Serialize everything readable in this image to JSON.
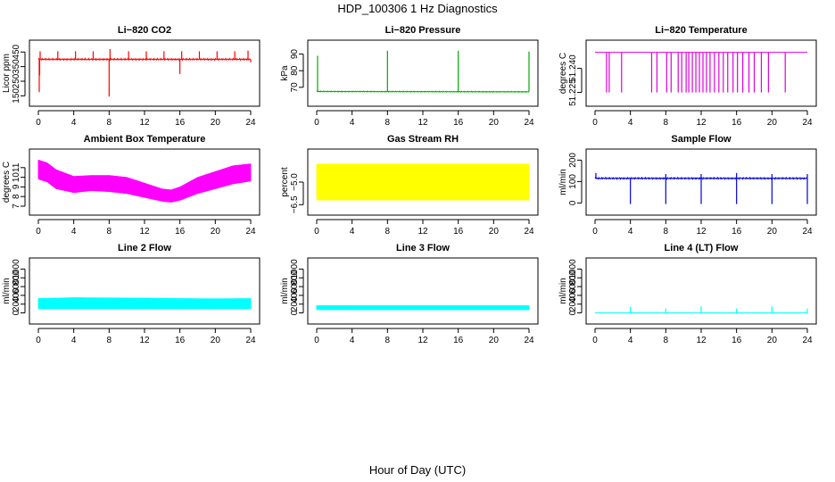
{
  "figure": {
    "title": "HDP_100306  1 Hz Diagnostics",
    "xlabel": "Hour of Day (UTC)"
  },
  "chart_data": [
    {
      "type": "line",
      "title": "Li−820 CO2",
      "ylabel": "Licor ppm",
      "color": "#ff0000",
      "xlim": [
        0,
        24
      ],
      "ylim": [
        140,
        470
      ],
      "xticks": [
        0,
        4,
        8,
        12,
        16,
        20,
        24
      ],
      "yticks": [
        150,
        250,
        350,
        450
      ],
      "baseline": 400,
      "noise": 6,
      "spikes_up": [
        [
          0.2,
          455
        ],
        [
          2.2,
          455
        ],
        [
          4.2,
          455
        ],
        [
          6.2,
          455
        ],
        [
          8.1,
          470
        ],
        [
          10.2,
          455
        ],
        [
          12.2,
          455
        ],
        [
          14.2,
          455
        ],
        [
          16.2,
          455
        ],
        [
          18.2,
          455
        ],
        [
          20.2,
          455
        ],
        [
          22.2,
          455
        ],
        [
          23.7,
          460
        ]
      ],
      "spikes_down": [
        [
          0.1,
          175
        ],
        [
          0.15,
          290
        ],
        [
          8.0,
          145
        ],
        [
          16.0,
          300
        ],
        [
          24.0,
          380
        ]
      ],
      "series": [
        {
          "name": "",
          "x": [
            0,
            24
          ],
          "y": [
            400,
            400
          ]
        }
      ]
    },
    {
      "type": "line",
      "title": "Li−820 Pressure",
      "ylabel": "kPa",
      "color": "#00aa00",
      "xlim": [
        0,
        24
      ],
      "ylim": [
        64,
        93
      ],
      "xticks": [
        0,
        4,
        8,
        12,
        16,
        20,
        24
      ],
      "yticks": [
        70,
        80,
        90
      ],
      "baseline": 67.5,
      "noise": 0.3,
      "spikes_up": [
        [
          0.1,
          89
        ],
        [
          8.0,
          92
        ],
        [
          16.0,
          92
        ],
        [
          24.0,
          91.5
        ]
      ],
      "spikes_down": [],
      "series": [
        {
          "name": "",
          "x": [
            0,
            24
          ],
          "y": [
            67.5,
            67.3
          ]
        }
      ]
    },
    {
      "type": "line",
      "title": "Li−820 Temperature",
      "ylabel": "degrees C",
      "color": "#dd00dd",
      "xlim": [
        0,
        24
      ],
      "ylim": [
        51.222,
        51.252
      ],
      "xticks": [
        0,
        4,
        8,
        12,
        16,
        20,
        24
      ],
      "yticks": [
        51.225,
        51.24
      ],
      "ytick_labels": [
        "51.225",
        "51.240"
      ],
      "baseline": 51.25,
      "noise": 0,
      "spikes_up": [],
      "spikes_down": [
        [
          1.3,
          51.225
        ],
        [
          1.6,
          51.225
        ],
        [
          3.0,
          51.225
        ],
        [
          6.4,
          51.225
        ],
        [
          7.0,
          51.225
        ],
        [
          8.1,
          51.225
        ],
        [
          8.6,
          51.225
        ],
        [
          9.4,
          51.225
        ],
        [
          9.8,
          51.225
        ],
        [
          10.3,
          51.225
        ],
        [
          10.6,
          51.225
        ],
        [
          11.0,
          51.225
        ],
        [
          11.4,
          51.225
        ],
        [
          11.8,
          51.225
        ],
        [
          12.2,
          51.225
        ],
        [
          12.6,
          51.225
        ],
        [
          13.0,
          51.225
        ],
        [
          13.5,
          51.225
        ],
        [
          14.0,
          51.225
        ],
        [
          14.5,
          51.225
        ],
        [
          15.0,
          51.225
        ],
        [
          15.6,
          51.225
        ],
        [
          16.1,
          51.225
        ],
        [
          16.7,
          51.225
        ],
        [
          17.4,
          51.225
        ],
        [
          18.0,
          51.225
        ],
        [
          18.8,
          51.225
        ],
        [
          19.6,
          51.225
        ],
        [
          21.5,
          51.225
        ]
      ],
      "series": [
        {
          "name": "",
          "x": [
            0,
            24
          ],
          "y": [
            51.25,
            51.25
          ]
        }
      ]
    },
    {
      "type": "line",
      "title": "Ambient Box Temperature",
      "ylabel": "degrees C",
      "color": "#ff00ff",
      "xlim": [
        0,
        24
      ],
      "ylim": [
        7,
        12
      ],
      "xticks": [
        0,
        4,
        8,
        12,
        16,
        20,
        24
      ],
      "yticks": [
        7,
        8,
        9,
        10,
        11
      ],
      "band": [
        [
          0,
          9.8,
          11.8
        ],
        [
          1,
          9.5,
          11.5
        ],
        [
          2,
          8.8,
          10.8
        ],
        [
          4,
          8.4,
          10.1
        ],
        [
          6,
          8.6,
          10.2
        ],
        [
          8,
          8.5,
          10.2
        ],
        [
          10,
          8.3,
          10.0
        ],
        [
          12,
          7.9,
          9.4
        ],
        [
          14,
          7.5,
          8.8
        ],
        [
          15,
          7.4,
          8.7
        ],
        [
          16,
          7.6,
          9.0
        ],
        [
          18,
          8.3,
          10.0
        ],
        [
          20,
          8.8,
          10.6
        ],
        [
          22,
          9.3,
          11.2
        ],
        [
          24,
          9.6,
          11.4
        ]
      ],
      "series": [
        {
          "name": "",
          "x": [
            0,
            4,
            8,
            12,
            16,
            20,
            24
          ],
          "y": [
            10.8,
            9.3,
            9.3,
            8.6,
            8.3,
            9.7,
            10.5
          ]
        }
      ]
    },
    {
      "type": "line",
      "title": "Gas Stream RH",
      "ylabel": "percent",
      "color": "#ffff00",
      "xlim": [
        0,
        24
      ],
      "ylim": [
        -6.6,
        -3.4
      ],
      "xticks": [
        0,
        4,
        8,
        12,
        16,
        20,
        24
      ],
      "yticks": [
        -6.5,
        -5.0
      ],
      "ytick_labels": [
        "−6.5",
        "−5.0"
      ],
      "band": [
        [
          0,
          -6.2,
          -3.8
        ],
        [
          24,
          -6.2,
          -3.8
        ]
      ],
      "series": [
        {
          "name": "",
          "x": [
            0,
            24
          ],
          "y": [
            -5.0,
            -5.0
          ]
        }
      ]
    },
    {
      "type": "line",
      "title": "Sample Flow",
      "ylabel": "ml/min",
      "color": "#0000dd",
      "xlim": [
        0,
        24
      ],
      "ylim": [
        -15,
        210
      ],
      "xticks": [
        0,
        4,
        8,
        12,
        16,
        20,
        24
      ],
      "yticks": [
        0,
        100,
        200
      ],
      "baseline": 115,
      "noise": 4,
      "spikes_up": [
        [
          0.1,
          140
        ],
        [
          8.0,
          135
        ],
        [
          12.0,
          135
        ],
        [
          16.0,
          140
        ],
        [
          20.0,
          135
        ],
        [
          24.0,
          135
        ]
      ],
      "spikes_down": [
        [
          4.0,
          -5
        ],
        [
          8.0,
          -5
        ],
        [
          12.0,
          -5
        ],
        [
          16.0,
          -5
        ],
        [
          20.0,
          -5
        ],
        [
          24.0,
          -5
        ]
      ],
      "series": [
        {
          "name": "",
          "x": [
            0,
            24
          ],
          "y": [
            115,
            115
          ]
        }
      ]
    },
    {
      "type": "line",
      "title": "Line 2 Flow",
      "ylabel": "ml/min",
      "color": "#00ffff",
      "xlim": [
        0,
        24
      ],
      "ylim": [
        -50,
        1050
      ],
      "xticks": [
        0,
        4,
        8,
        12,
        16,
        20,
        24
      ],
      "yticks": [
        0,
        200,
        400,
        600,
        800,
        1000
      ],
      "band": [
        [
          0,
          90,
          330
        ],
        [
          4,
          90,
          350
        ],
        [
          8,
          90,
          345
        ],
        [
          12,
          90,
          340
        ],
        [
          16,
          90,
          330
        ],
        [
          20,
          90,
          325
        ],
        [
          24,
          90,
          330
        ]
      ],
      "series": [
        {
          "name": "",
          "x": [
            0,
            24
          ],
          "y": [
            210,
            210
          ]
        }
      ]
    },
    {
      "type": "line",
      "title": "Line 3 Flow",
      "ylabel": "ml/min",
      "color": "#00ffff",
      "xlim": [
        0,
        24
      ],
      "ylim": [
        -50,
        1050
      ],
      "xticks": [
        0,
        4,
        8,
        12,
        16,
        20,
        24
      ],
      "yticks": [
        0,
        200,
        400,
        600,
        800,
        1000
      ],
      "band": [
        [
          0,
          70,
          170
        ],
        [
          24,
          70,
          170
        ]
      ],
      "series": [
        {
          "name": "",
          "x": [
            0,
            24
          ],
          "y": [
            120,
            120
          ]
        }
      ]
    },
    {
      "type": "line",
      "title": "Line 4 (LT) Flow",
      "ylabel": "ml/min",
      "color": "#00ffff",
      "xlim": [
        0,
        24
      ],
      "ylim": [
        -50,
        1050
      ],
      "xticks": [
        0,
        4,
        8,
        12,
        16,
        20,
        24
      ],
      "yticks": [
        0,
        200,
        400,
        600,
        800,
        1000
      ],
      "baseline": 0,
      "noise": 5,
      "spikes_up": [
        [
          4.0,
          140
        ],
        [
          8.0,
          100
        ],
        [
          12.0,
          150
        ],
        [
          16.0,
          100
        ],
        [
          20.0,
          150
        ],
        [
          24.0,
          100
        ]
      ],
      "spikes_down": [],
      "series": [
        {
          "name": "",
          "x": [
            0,
            24
          ],
          "y": [
            0,
            0
          ]
        }
      ]
    }
  ]
}
